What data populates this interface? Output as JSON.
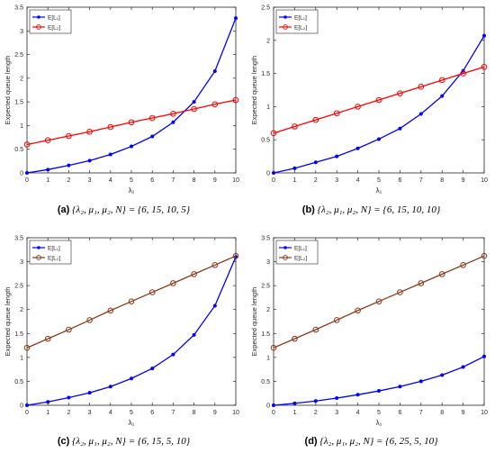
{
  "chart_data": [
    {
      "type": "line",
      "caption_tag": "(a)",
      "caption_math": "{λ₂, μ₁, μ₂, N} = {6, 15, 10, 5}",
      "xlabel": "λ₁",
      "ylabel": "Expected queue length",
      "xlim": [
        0,
        10
      ],
      "ylim": [
        0,
        3.5
      ],
      "xticks": [
        0,
        1,
        2,
        3,
        4,
        5,
        6,
        7,
        8,
        9,
        10
      ],
      "yticks": [
        0,
        0.5,
        1,
        1.5,
        2,
        2.5,
        3,
        3.5
      ],
      "x": [
        0,
        1,
        2,
        3,
        4,
        5,
        6,
        7,
        8,
        9,
        10
      ],
      "legend_position": "top-left",
      "series": [
        {
          "name": "E[L₁]",
          "color": "#0000ff",
          "marker": "dot",
          "values": [
            0,
            0.07,
            0.16,
            0.26,
            0.39,
            0.56,
            0.77,
            1.07,
            1.5,
            2.15,
            3.27
          ]
        },
        {
          "name": "E[L₂]",
          "color": "#ff0000",
          "marker": "circle",
          "values": [
            0.6,
            0.69,
            0.78,
            0.87,
            0.97,
            1.07,
            1.16,
            1.25,
            1.35,
            1.45,
            1.54
          ]
        }
      ]
    },
    {
      "type": "line",
      "caption_tag": "(b)",
      "caption_math": "{λ₂, μ₁, μ₂, N} = {6, 15, 10, 10}",
      "xlabel": "λ₁",
      "ylabel": "Expected queue length",
      "xlim": [
        0,
        10
      ],
      "ylim": [
        0,
        2.5
      ],
      "xticks": [
        0,
        1,
        2,
        3,
        4,
        5,
        6,
        7,
        8,
        9,
        10
      ],
      "yticks": [
        0,
        0.5,
        1,
        1.5,
        2,
        2.5
      ],
      "x": [
        0,
        1,
        2,
        3,
        4,
        5,
        6,
        7,
        8,
        9,
        10
      ],
      "legend_position": "top-left",
      "series": [
        {
          "name": "E[L₁]",
          "color": "#0000ff",
          "marker": "dot",
          "values": [
            0,
            0.07,
            0.16,
            0.25,
            0.37,
            0.51,
            0.67,
            0.89,
            1.16,
            1.54,
            2.07
          ]
        },
        {
          "name": "E[L₂]",
          "color": "#ff0000",
          "marker": "circle",
          "values": [
            0.6,
            0.7,
            0.8,
            0.9,
            1.0,
            1.1,
            1.2,
            1.3,
            1.4,
            1.5,
            1.6
          ]
        }
      ]
    },
    {
      "type": "line",
      "caption_tag": "(c)",
      "caption_math": "{λ₂, μ₁, μ₂, N} = {6, 15, 5, 10}",
      "xlabel": "λ₁",
      "ylabel": "Expected queue length",
      "xlim": [
        0,
        10
      ],
      "ylim": [
        0,
        3.5
      ],
      "xticks": [
        0,
        1,
        2,
        3,
        4,
        5,
        6,
        7,
        8,
        9,
        10
      ],
      "yticks": [
        0,
        0.5,
        1,
        1.5,
        2,
        2.5,
        3,
        3.5
      ],
      "x": [
        0,
        1,
        2,
        3,
        4,
        5,
        6,
        7,
        8,
        9,
        10
      ],
      "legend_position": "top-left",
      "series": [
        {
          "name": "E[L₁]",
          "color": "#0000ff",
          "marker": "dot",
          "values": [
            0,
            0.07,
            0.16,
            0.26,
            0.39,
            0.56,
            0.77,
            1.06,
            1.47,
            2.08,
            3.1
          ]
        },
        {
          "name": "E[L₂]",
          "color": "#8b3a1a",
          "marker": "circle",
          "values": [
            1.2,
            1.39,
            1.58,
            1.78,
            1.98,
            2.17,
            2.36,
            2.55,
            2.74,
            2.93,
            3.12
          ]
        }
      ]
    },
    {
      "type": "line",
      "caption_tag": "(d)",
      "caption_math": "{λ₂, μ₁, μ₂, N} = {6, 25, 5, 10}",
      "xlabel": "λ₁",
      "ylabel": "Expected queue length",
      "xlim": [
        0,
        10
      ],
      "ylim": [
        0,
        3.5
      ],
      "xticks": [
        0,
        1,
        2,
        3,
        4,
        5,
        6,
        7,
        8,
        9,
        10
      ],
      "yticks": [
        0,
        0.5,
        1,
        1.5,
        2,
        2.5,
        3,
        3.5
      ],
      "x": [
        0,
        1,
        2,
        3,
        4,
        5,
        6,
        7,
        8,
        9,
        10
      ],
      "legend_position": "top-left",
      "series": [
        {
          "name": "E[L₁]",
          "color": "#0000ff",
          "marker": "dot",
          "values": [
            0,
            0.04,
            0.09,
            0.15,
            0.22,
            0.3,
            0.39,
            0.5,
            0.63,
            0.8,
            1.02
          ]
        },
        {
          "name": "E[L₂]",
          "color": "#8b3a1a",
          "marker": "circle",
          "values": [
            1.2,
            1.39,
            1.58,
            1.78,
            1.98,
            2.17,
            2.36,
            2.55,
            2.74,
            2.93,
            3.12
          ]
        }
      ]
    }
  ]
}
